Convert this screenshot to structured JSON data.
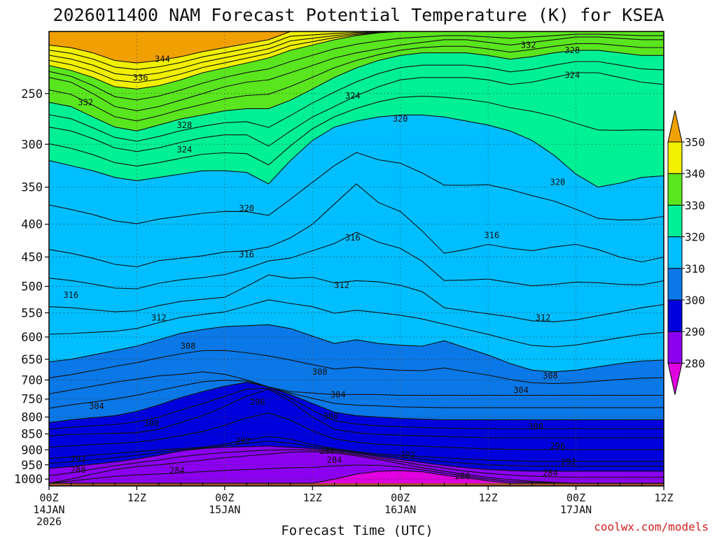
{
  "chart_data": {
    "type": "heatmap",
    "title": "2026011400 NAM Forecast Potential Temperature (K) for KSEA",
    "xlabel": "Forecast Time (UTC)",
    "ylabel": "",
    "credit": "coolwx.com/models",
    "x_forecast_hours": [
      0,
      3,
      6,
      9,
      12,
      15,
      18,
      21,
      24,
      27,
      30,
      33,
      36,
      39,
      42,
      45,
      48,
      51,
      54,
      57,
      60,
      63,
      66,
      69,
      72,
      75,
      78,
      81,
      84
    ],
    "x_ticks": [
      {
        "hour": 0,
        "lines": [
          "00Z",
          "14JAN",
          "2026"
        ]
      },
      {
        "hour": 12,
        "lines": [
          "12Z"
        ]
      },
      {
        "hour": 24,
        "lines": [
          "00Z",
          "15JAN"
        ]
      },
      {
        "hour": 36,
        "lines": [
          "12Z"
        ]
      },
      {
        "hour": 48,
        "lines": [
          "00Z",
          "16JAN"
        ]
      },
      {
        "hour": 60,
        "lines": [
          "12Z"
        ]
      },
      {
        "hour": 72,
        "lines": [
          "00Z",
          "17JAN"
        ]
      },
      {
        "hour": 84,
        "lines": [
          "12Z"
        ]
      }
    ],
    "y_axis": {
      "label_unit": "hPa",
      "scale": "log",
      "range": [
        1025,
        200
      ],
      "ticks": [
        250,
        300,
        350,
        400,
        450,
        500,
        550,
        600,
        650,
        700,
        750,
        800,
        850,
        900,
        950,
        1000
      ]
    },
    "surface_pressure_hpa": 1015,
    "grid": true,
    "legend": {
      "placement": "right",
      "type": "colorbar"
    },
    "colorbar": {
      "tick_labels": [
        "280",
        "290",
        "300",
        "310",
        "320",
        "330",
        "340",
        "350"
      ],
      "bins": [
        {
          "min": null,
          "max": 280,
          "color": "#e000e0"
        },
        {
          "min": 280,
          "max": 290,
          "color": "#8c00f0"
        },
        {
          "min": 290,
          "max": 300,
          "color": "#0000dc"
        },
        {
          "min": 300,
          "max": 310,
          "color": "#0a78e6"
        },
        {
          "min": 310,
          "max": 320,
          "color": "#00beff"
        },
        {
          "min": 320,
          "max": 330,
          "color": "#00f096"
        },
        {
          "min": 330,
          "max": 340,
          "color": "#5ae61e"
        },
        {
          "min": 340,
          "max": 350,
          "color": "#f0f000"
        },
        {
          "min": 350,
          "max": null,
          "color": "#f0a000"
        }
      ]
    },
    "surface_color": "#a0522d",
    "contour_interval": 2,
    "contour_labels": [
      "344",
      "336",
      "332",
      "328",
      "324",
      "320",
      "316",
      "312",
      "308",
      "304",
      "300",
      "296",
      "292",
      "288",
      "284",
      "280"
    ],
    "isentropes": [
      {
        "theta": 344,
        "p": [
          210,
          212,
          216,
          222,
          224,
          222,
          219,
          215,
          212,
          209,
          206,
          200,
          200,
          200,
          200,
          200,
          200,
          200,
          200,
          200,
          200,
          200,
          200,
          200,
          200,
          200,
          200,
          200,
          200
        ]
      },
      {
        "theta": 336,
        "p": [
          226,
          230,
          236,
          244,
          246,
          243,
          238,
          232,
          228,
          224,
          220,
          214,
          210,
          206,
          203,
          201,
          200,
          200,
          200,
          200,
          200,
          200,
          200,
          200,
          200,
          200,
          200,
          200,
          200
        ]
      },
      {
        "theta": 332,
        "p": [
          236,
          240,
          250,
          262,
          266,
          262,
          256,
          250,
          244,
          240,
          238,
          232,
          226,
          220,
          216,
          213,
          210,
          208,
          206,
          206,
          208,
          210,
          208,
          206,
          204,
          204,
          205,
          206,
          206
        ]
      },
      {
        "theta": 328,
        "p": [
          258,
          262,
          272,
          282,
          286,
          280,
          274,
          270,
          266,
          264,
          264,
          256,
          246,
          236,
          228,
          222,
          218,
          216,
          216,
          216,
          218,
          221,
          219,
          216,
          214,
          214,
          216,
          218,
          218
        ]
      },
      {
        "theta": 324,
        "p": [
          282,
          286,
          294,
          304,
          308,
          304,
          298,
          293,
          290,
          290,
          302,
          286,
          272,
          262,
          252,
          244,
          238,
          236,
          236,
          236,
          238,
          242,
          240,
          236,
          232,
          232,
          236,
          240,
          242
        ]
      },
      {
        "theta": 320,
        "p": [
          318,
          324,
          330,
          338,
          342,
          338,
          334,
          330,
          330,
          332,
          346,
          318,
          296,
          282,
          276,
          272,
          270,
          270,
          272,
          276,
          280,
          286,
          296,
          312,
          334,
          350,
          345,
          338,
          336
        ]
      },
      {
        "theta": 316,
        "p": [
          438,
          444,
          452,
          462,
          466,
          456,
          452,
          448,
          442,
          440,
          434,
          420,
          400,
          372,
          346,
          370,
          382,
          410,
          444,
          438,
          430,
          436,
          440,
          434,
          430,
          438,
          450,
          458,
          450
        ]
      },
      {
        "theta": 312,
        "p": [
          538,
          540,
          544,
          548,
          546,
          536,
          528,
          524,
          520,
          500,
          480,
          486,
          484,
          494,
          490,
          492,
          498,
          510,
          540,
          546,
          552,
          558,
          566,
          568,
          564,
          556,
          548,
          540,
          534
        ]
      },
      {
        "theta": 308,
        "p": [
          656,
          650,
          640,
          630,
          620,
          606,
          592,
          584,
          578,
          576,
          574,
          582,
          598,
          614,
          606,
          614,
          618,
          620,
          608,
          624,
          640,
          660,
          676,
          680,
          676,
          668,
          660,
          654,
          652
        ]
      },
      {
        "theta": 304,
        "p": [
          736,
          726,
          716,
          706,
          698,
          690,
          686,
          680,
          686,
          700,
          718,
          730,
          734,
          738,
          738,
          738,
          740,
          740,
          740,
          740,
          740,
          740,
          740,
          740,
          740,
          740,
          740,
          740,
          740
        ]
      },
      {
        "theta": 300,
        "p": [
          816,
          808,
          802,
          796,
          784,
          766,
          746,
          730,
          716,
          706,
          718,
          738,
          762,
          786,
          796,
          800,
          804,
          806,
          808,
          808,
          808,
          808,
          808,
          808,
          808,
          808,
          808,
          808,
          808
        ]
      },
      {
        "theta": 296,
        "p": [
          856,
          852,
          850,
          848,
          846,
          836,
          816,
          796,
          770,
          742,
          724,
          756,
          800,
          836,
          846,
          852,
          854,
          856,
          858,
          860,
          862,
          862,
          862,
          862,
          862,
          862,
          862,
          862,
          862
        ]
      },
      {
        "theta": 292,
        "p": [
          928,
          924,
          918,
          912,
          906,
          900,
          896,
          892,
          882,
          868,
          858,
          866,
          884,
          896,
          906,
          914,
          918,
          922,
          926,
          930,
          934,
          936,
          938,
          938,
          938,
          938,
          938,
          938,
          938
        ]
      },
      {
        "theta": 288,
        "p": [
          962,
          956,
          948,
          940,
          930,
          918,
          904,
          896,
          892,
          890,
          888,
          892,
          896,
          902,
          912,
          922,
          932,
          942,
          952,
          960,
          966,
          970,
          972,
          972,
          972,
          972,
          972,
          972,
          972
        ]
      },
      {
        "theta": 284,
        "p": [
          1015,
          1000,
          982,
          966,
          956,
          950,
          942,
          934,
          926,
          920,
          914,
          908,
          906,
          910,
          920,
          932,
          946,
          960,
          972,
          984,
          994,
          1002,
          1008,
          1012,
          1015,
          1015,
          1015,
          1015,
          1015
        ]
      },
      {
        "theta": 280,
        "p": [
          1015,
          1015,
          1015,
          1015,
          1015,
          1015,
          1015,
          1015,
          1015,
          1015,
          1015,
          1015,
          1015,
          1000,
          982,
          972,
          970,
          974,
          986,
          996,
          1006,
          1015,
          1015,
          1015,
          1015,
          1015,
          1015,
          1015,
          1015
        ]
      }
    ],
    "contour_label_positions": [
      {
        "text": "344",
        "hour": 15.5,
        "p": 221
      },
      {
        "text": "336",
        "hour": 12.5,
        "p": 236
      },
      {
        "text": "332",
        "hour": 5,
        "p": 258
      },
      {
        "text": "332",
        "hour": 65.5,
        "p": 210
      },
      {
        "text": "328",
        "hour": 18.5,
        "p": 280
      },
      {
        "text": "328",
        "hour": 71.5,
        "p": 214
      },
      {
        "text": "324",
        "hour": 18.5,
        "p": 306
      },
      {
        "text": "324",
        "hour": 41.5,
        "p": 252
      },
      {
        "text": "324",
        "hour": 71.5,
        "p": 234
      },
      {
        "text": "320",
        "hour": 27,
        "p": 378
      },
      {
        "text": "320",
        "hour": 48,
        "p": 274
      },
      {
        "text": "320",
        "hour": 69.5,
        "p": 344
      },
      {
        "text": "316",
        "hour": 3,
        "p": 516
      },
      {
        "text": "316",
        "hour": 27,
        "p": 446
      },
      {
        "text": "316",
        "hour": 41.5,
        "p": 420
      },
      {
        "text": "316",
        "hour": 60.5,
        "p": 416
      },
      {
        "text": "312",
        "hour": 15,
        "p": 560
      },
      {
        "text": "312",
        "hour": 40,
        "p": 498
      },
      {
        "text": "312",
        "hour": 67.5,
        "p": 560
      },
      {
        "text": "308",
        "hour": 19,
        "p": 620
      },
      {
        "text": "308",
        "hour": 37,
        "p": 680
      },
      {
        "text": "308",
        "hour": 68.5,
        "p": 690
      },
      {
        "text": "304",
        "hour": 6.5,
        "p": 770
      },
      {
        "text": "304",
        "hour": 39.5,
        "p": 738
      },
      {
        "text": "304",
        "hour": 64.5,
        "p": 726
      },
      {
        "text": "300",
        "hour": 14,
        "p": 818
      },
      {
        "text": "300",
        "hour": 38.5,
        "p": 798
      },
      {
        "text": "300",
        "hour": 66.5,
        "p": 828
      },
      {
        "text": "296",
        "hour": 28.5,
        "p": 758
      },
      {
        "text": "296",
        "hour": 69.5,
        "p": 888
      },
      {
        "text": "292",
        "hour": 4,
        "p": 930
      },
      {
        "text": "292",
        "hour": 26.5,
        "p": 872
      },
      {
        "text": "292",
        "hour": 49,
        "p": 916
      },
      {
        "text": "292",
        "hour": 71,
        "p": 940
      },
      {
        "text": "288",
        "hour": 4,
        "p": 967
      },
      {
        "text": "288",
        "hour": 38,
        "p": 904
      },
      {
        "text": "284",
        "hour": 17.5,
        "p": 970
      },
      {
        "text": "284",
        "hour": 39,
        "p": 934
      },
      {
        "text": "284",
        "hour": 68.5,
        "p": 978
      },
      {
        "text": "280",
        "hour": 56.5,
        "p": 990
      }
    ]
  }
}
